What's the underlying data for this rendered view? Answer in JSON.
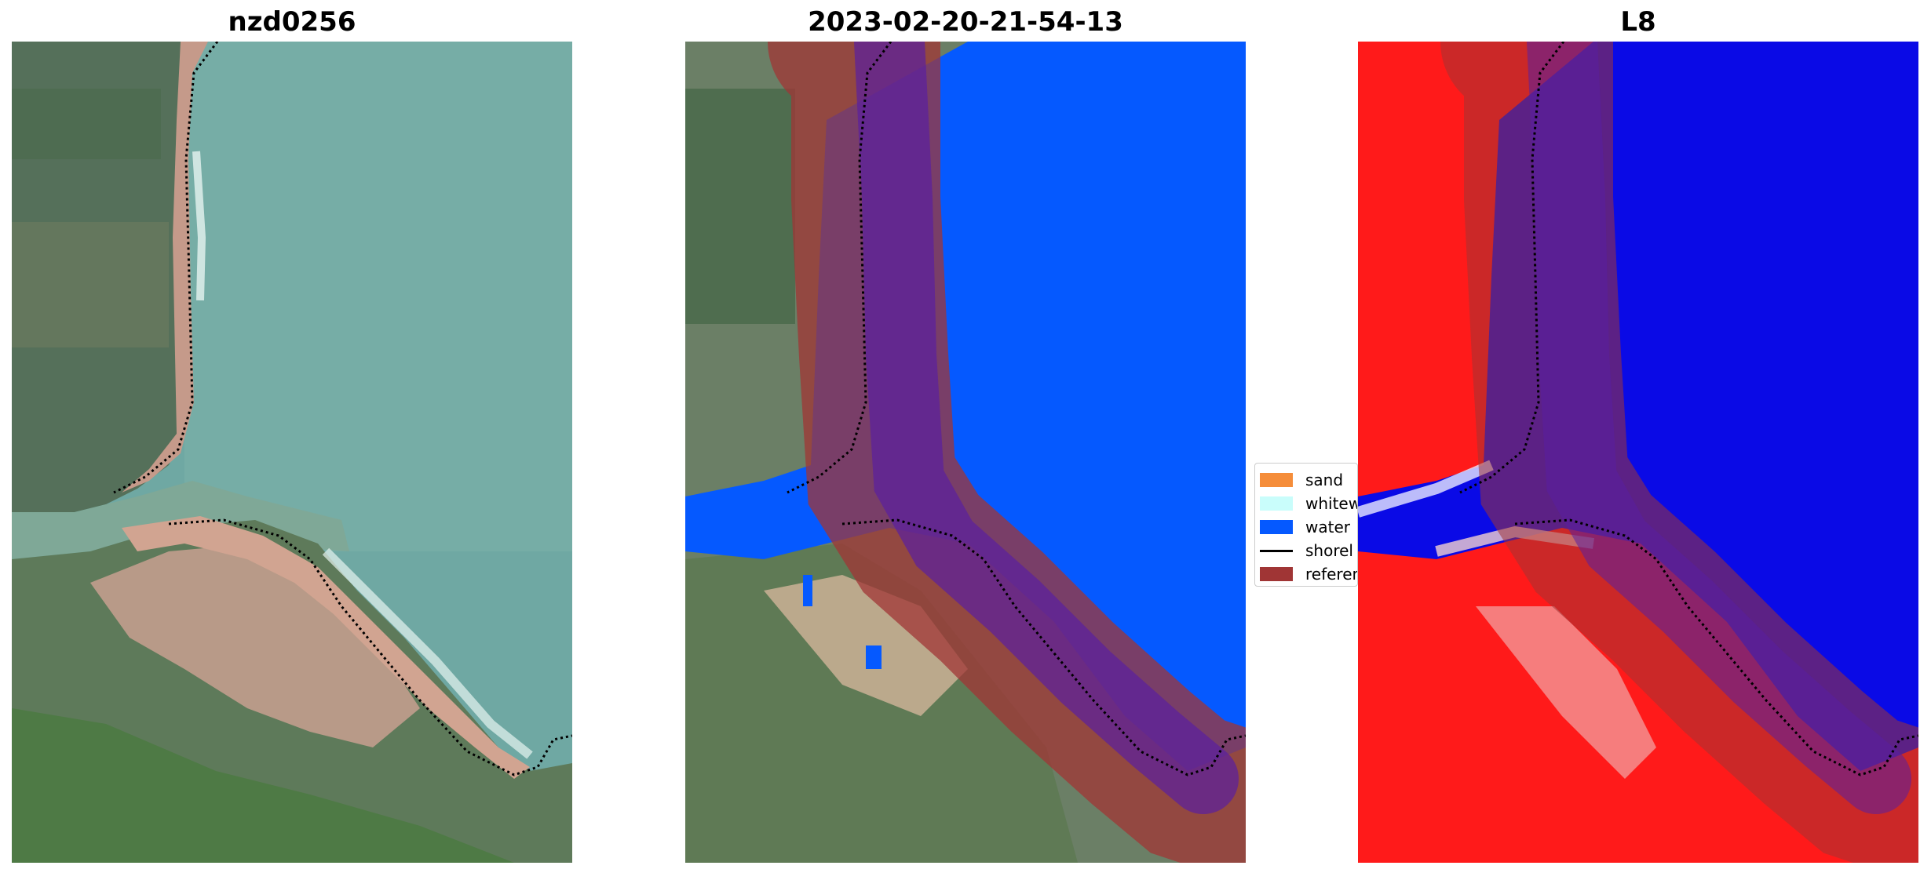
{
  "panels": [
    {
      "title": "nzd0256"
    },
    {
      "title": "2023-02-20-21-54-13"
    },
    {
      "title": "L8"
    }
  ],
  "legend": {
    "items": [
      {
        "label": "sand",
        "color": "#f58d3a",
        "kind": "patch"
      },
      {
        "label": "whitew",
        "color": "#c9fdfb",
        "kind": "patch"
      },
      {
        "label": "water",
        "color": "#0559ff",
        "kind": "patch"
      },
      {
        "label": "shorel",
        "color": "#000000",
        "kind": "line"
      },
      {
        "label": "referen",
        "color": "#a03535",
        "kind": "patch"
      }
    ]
  },
  "colors": {
    "water_class": "#0559ff",
    "reference_buffer": "#a03535",
    "index_land": "#ff1a1a",
    "index_water": "#0a0ae6"
  }
}
